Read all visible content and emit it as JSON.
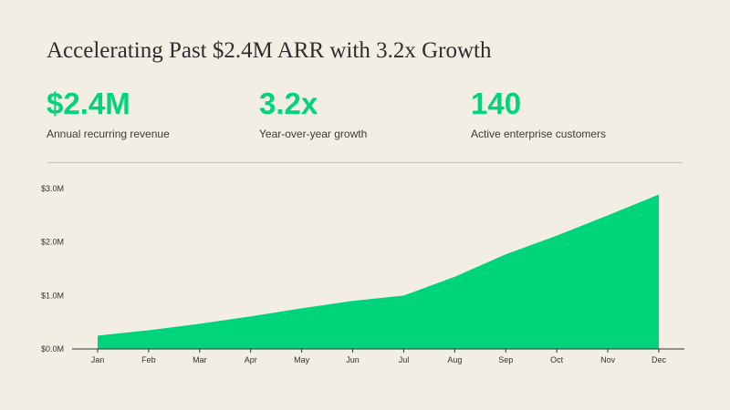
{
  "title": "Accelerating Past $2.4M ARR with 3.2x Growth",
  "stats": [
    {
      "value": "$2.4M",
      "label": "Annual recurring revenue"
    },
    {
      "value": "3.2x",
      "label": "Year-over-year growth"
    },
    {
      "value": "140",
      "label": "Active enterprise customers"
    }
  ],
  "colors": {
    "accent": "#00d47a",
    "background": "#f2eee3"
  },
  "chart_data": {
    "type": "area",
    "categories": [
      "Jan",
      "Feb",
      "Mar",
      "Apr",
      "May",
      "Jun",
      "Jul",
      "Aug",
      "Sep",
      "Oct",
      "Nov",
      "Dec"
    ],
    "values": [
      0.25,
      0.35,
      0.47,
      0.61,
      0.76,
      0.9,
      1.0,
      1.35,
      1.77,
      2.12,
      2.5,
      2.89
    ],
    "unit": "$M",
    "ylim": [
      0,
      3.0
    ],
    "yticks": [
      0,
      1,
      2,
      3
    ],
    "ytick_labels": [
      "$0.0M",
      "$1.0M",
      "$2.0M",
      "$3.0M"
    ],
    "grid": false,
    "title": "",
    "xlabel": "",
    "ylabel": ""
  }
}
